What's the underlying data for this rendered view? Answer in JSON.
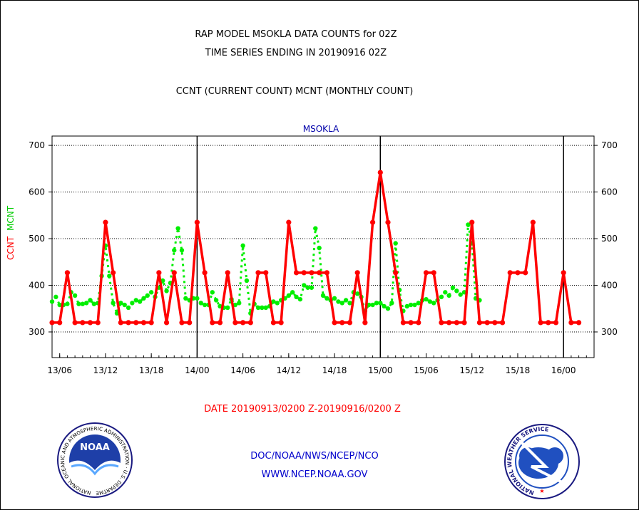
{
  "header": {
    "title_line1": "RAP MODEL MSOKLA DATA COUNTS for 02Z",
    "title_line2": "TIME SERIES ENDING IN 20190916 02Z",
    "subtitle": "CCNT (CURRENT COUNT) MCNT (MONTHLY COUNT)"
  },
  "footer": {
    "date_range": "DATE 20190913/0200 Z-20190916/0200 Z",
    "agency": "DOC/NOAA/NWS/NCEP/NCO",
    "website": "WWW.NCEP.NOAA.GOV",
    "noaa_logo_text": "NOAA",
    "noaa_ring_text": "NATIONAL OCEANIC AND ATMOSPHERIC ADMINISTRATION · U.S. DEPARTMENT OF COMMERCE",
    "nws_ring_text": "NATIONAL WEATHER SERVICE"
  },
  "colors": {
    "ccnt": "#ff0000",
    "mcnt": "#00ee00",
    "panel_title": "#0000aa",
    "footer_text": "#0000cc",
    "date_text": "#ff0000"
  },
  "chart_data": {
    "type": "line",
    "title": "MSOKLA",
    "ylim": [
      245,
      720
    ],
    "yticks": [
      300,
      400,
      500,
      600,
      700
    ],
    "xlim": [
      3,
      74
    ],
    "xticks": [
      {
        "x": 4,
        "label": "13/06"
      },
      {
        "x": 10,
        "label": "13/12"
      },
      {
        "x": 16,
        "label": "13/18"
      },
      {
        "x": 22,
        "label": "14/00"
      },
      {
        "x": 28,
        "label": "14/06"
      },
      {
        "x": 34,
        "label": "14/12"
      },
      {
        "x": 40,
        "label": "14/18"
      },
      {
        "x": 46,
        "label": "15/00"
      },
      {
        "x": 52,
        "label": "15/06"
      },
      {
        "x": 58,
        "label": "15/12"
      },
      {
        "x": 64,
        "label": "15/18"
      },
      {
        "x": 70,
        "label": "16/00"
      }
    ],
    "day_boundaries": [
      22,
      46,
      70
    ],
    "x_units": "hours from 20190913/0000 Z",
    "series": [
      {
        "name": "CCNT",
        "values": [
          {
            "x": 3,
            "y": 320
          },
          {
            "x": 4,
            "y": 320
          },
          {
            "x": 5,
            "y": 427
          },
          {
            "x": 6,
            "y": 320
          },
          {
            "x": 7,
            "y": 320
          },
          {
            "x": 8,
            "y": 320
          },
          {
            "x": 9,
            "y": 320
          },
          {
            "x": 10,
            "y": 535
          },
          {
            "x": 11,
            "y": 427
          },
          {
            "x": 12,
            "y": 320
          },
          {
            "x": 13,
            "y": 320
          },
          {
            "x": 14,
            "y": 320
          },
          {
            "x": 15,
            "y": 320
          },
          {
            "x": 16,
            "y": 320
          },
          {
            "x": 17,
            "y": 427
          },
          {
            "x": 18,
            "y": 320
          },
          {
            "x": 19,
            "y": 427
          },
          {
            "x": 20,
            "y": 320
          },
          {
            "x": 21,
            "y": 320
          },
          {
            "x": 22,
            "y": 535
          },
          {
            "x": 23,
            "y": 427
          },
          {
            "x": 24,
            "y": 320
          },
          {
            "x": 25,
            "y": 320
          },
          {
            "x": 26,
            "y": 427
          },
          {
            "x": 27,
            "y": 320
          },
          {
            "x": 28,
            "y": 320
          },
          {
            "x": 29,
            "y": 320
          },
          {
            "x": 30,
            "y": 427
          },
          {
            "x": 31,
            "y": 427
          },
          {
            "x": 32,
            "y": 320
          },
          {
            "x": 33,
            "y": 320
          },
          {
            "x": 34,
            "y": 535
          },
          {
            "x": 35,
            "y": 427
          },
          {
            "x": 36,
            "y": 427
          },
          {
            "x": 37,
            "y": 427
          },
          {
            "x": 38,
            "y": 427
          },
          {
            "x": 39,
            "y": 427
          },
          {
            "x": 40,
            "y": 320
          },
          {
            "x": 41,
            "y": 320
          },
          {
            "x": 42,
            "y": 320
          },
          {
            "x": 43,
            "y": 427
          },
          {
            "x": 44,
            "y": 320
          },
          {
            "x": 45,
            "y": 535
          },
          {
            "x": 46,
            "y": 642
          },
          {
            "x": 47,
            "y": 535
          },
          {
            "x": 48,
            "y": 427
          },
          {
            "x": 49,
            "y": 320
          },
          {
            "x": 50,
            "y": 320
          },
          {
            "x": 51,
            "y": 320
          },
          {
            "x": 52,
            "y": 427
          },
          {
            "x": 53,
            "y": 427
          },
          {
            "x": 54,
            "y": 320
          },
          {
            "x": 55,
            "y": 320
          },
          {
            "x": 56,
            "y": 320
          },
          {
            "x": 57,
            "y": 320
          },
          {
            "x": 58,
            "y": 535
          },
          {
            "x": 59,
            "y": 320
          },
          {
            "x": 60,
            "y": 320
          },
          {
            "x": 61,
            "y": 320
          },
          {
            "x": 62,
            "y": 320
          },
          {
            "x": 63,
            "y": 427
          },
          {
            "x": 64,
            "y": 427
          },
          {
            "x": 65,
            "y": 427
          },
          {
            "x": 66,
            "y": 535
          },
          {
            "x": 67,
            "y": 320
          },
          {
            "x": 68,
            "y": 320
          },
          {
            "x": 69,
            "y": 320
          },
          {
            "x": 70,
            "y": 427
          },
          {
            "x": 71,
            "y": 320
          },
          {
            "x": 72,
            "y": 320
          }
        ]
      },
      {
        "name": "MCNT",
        "values": [
          {
            "x": 3,
            "y": 365
          },
          {
            "x": 3.5,
            "y": 375
          },
          {
            "x": 4,
            "y": 358
          },
          {
            "x": 4.5,
            "y": 358
          },
          {
            "x": 5,
            "y": 360
          },
          {
            "x": 5.5,
            "y": 385
          },
          {
            "x": 6,
            "y": 378
          },
          {
            "x": 6.5,
            "y": 360
          },
          {
            "x": 7,
            "y": 360
          },
          {
            "x": 7.5,
            "y": 362
          },
          {
            "x": 8,
            "y": 368
          },
          {
            "x": 8.5,
            "y": 360
          },
          {
            "x": 9,
            "y": 362
          },
          {
            "x": 9.5,
            "y": 420
          },
          {
            "x": 10,
            "y": 485
          },
          {
            "x": 10.5,
            "y": 420
          },
          {
            "x": 11,
            "y": 362
          },
          {
            "x": 11.5,
            "y": 340
          },
          {
            "x": 12,
            "y": 362
          },
          {
            "x": 12.5,
            "y": 358
          },
          {
            "x": 13,
            "y": 352
          },
          {
            "x": 13.5,
            "y": 362
          },
          {
            "x": 14,
            "y": 368
          },
          {
            "x": 14.5,
            "y": 365
          },
          {
            "x": 15,
            "y": 372
          },
          {
            "x": 15.5,
            "y": 378
          },
          {
            "x": 16,
            "y": 385
          },
          {
            "x": 16.5,
            "y": 375
          },
          {
            "x": 17,
            "y": 395
          },
          {
            "x": 17.5,
            "y": 410
          },
          {
            "x": 18,
            "y": 388
          },
          {
            "x": 18.5,
            "y": 405
          },
          {
            "x": 19,
            "y": 475
          },
          {
            "x": 19.5,
            "y": 522
          },
          {
            "x": 20,
            "y": 475
          },
          {
            "x": 20.5,
            "y": 372
          },
          {
            "x": 21,
            "y": 368
          },
          {
            "x": 21.5,
            "y": 372
          },
          {
            "x": 22,
            "y": 372
          },
          {
            "x": 22.5,
            "y": 362
          },
          {
            "x": 23,
            "y": 358
          },
          {
            "x": 23.5,
            "y": 358
          },
          {
            "x": 24,
            "y": 385
          },
          {
            "x": 24.5,
            "y": 368
          },
          {
            "x": 25,
            "y": 355
          },
          {
            "x": 25.5,
            "y": 352
          },
          {
            "x": 26,
            "y": 352
          },
          {
            "x": 26.5,
            "y": 370
          },
          {
            "x": 27,
            "y": 358
          },
          {
            "x": 27.5,
            "y": 362
          },
          {
            "x": 28,
            "y": 485
          },
          {
            "x": 28.5,
            "y": 410
          },
          {
            "x": 29,
            "y": 340
          },
          {
            "x": 29.5,
            "y": 360
          },
          {
            "x": 30,
            "y": 352
          },
          {
            "x": 30.5,
            "y": 352
          },
          {
            "x": 31,
            "y": 352
          },
          {
            "x": 31.5,
            "y": 355
          },
          {
            "x": 32,
            "y": 365
          },
          {
            "x": 32.5,
            "y": 362
          },
          {
            "x": 33,
            "y": 368
          },
          {
            "x": 33.5,
            "y": 372
          },
          {
            "x": 34,
            "y": 378
          },
          {
            "x": 34.5,
            "y": 385
          },
          {
            "x": 35,
            "y": 375
          },
          {
            "x": 35.5,
            "y": 370
          },
          {
            "x": 36,
            "y": 400
          },
          {
            "x": 36.5,
            "y": 395
          },
          {
            "x": 37,
            "y": 395
          },
          {
            "x": 37.5,
            "y": 522
          },
          {
            "x": 38,
            "y": 480
          },
          {
            "x": 38.5,
            "y": 378
          },
          {
            "x": 39,
            "y": 372
          },
          {
            "x": 39.5,
            "y": 368
          },
          {
            "x": 40,
            "y": 372
          },
          {
            "x": 40.5,
            "y": 365
          },
          {
            "x": 41,
            "y": 362
          },
          {
            "x": 41.5,
            "y": 368
          },
          {
            "x": 42,
            "y": 362
          },
          {
            "x": 42.5,
            "y": 385
          },
          {
            "x": 43,
            "y": 382
          },
          {
            "x": 43.5,
            "y": 375
          },
          {
            "x": 44,
            "y": 345
          },
          {
            "x": 44.5,
            "y": 358
          },
          {
            "x": 45,
            "y": 358
          },
          {
            "x": 45.5,
            "y": 362
          },
          {
            "x": 46,
            "y": 362
          },
          {
            "x": 46.5,
            "y": 355
          },
          {
            "x": 47,
            "y": 350
          },
          {
            "x": 47.5,
            "y": 362
          },
          {
            "x": 48,
            "y": 490
          },
          {
            "x": 48.5,
            "y": 390
          },
          {
            "x": 49,
            "y": 345
          },
          {
            "x": 49.5,
            "y": 355
          },
          {
            "x": 50,
            "y": 358
          },
          {
            "x": 50.5,
            "y": 358
          },
          {
            "x": 51,
            "y": 362
          },
          {
            "x": 51.5,
            "y": 368
          },
          {
            "x": 52,
            "y": 370
          },
          {
            "x": 52.5,
            "y": 365
          },
          {
            "x": 53,
            "y": 362
          },
          {
            "x": 53.5,
            "y": 368
          },
          {
            "x": 54,
            "y": 375
          },
          {
            "x": 54.5,
            "y": 385
          },
          {
            "x": 55,
            "y": 378
          },
          {
            "x": 55.5,
            "y": 395
          },
          {
            "x": 56,
            "y": 388
          },
          {
            "x": 56.5,
            "y": 380
          },
          {
            "x": 57,
            "y": 385
          },
          {
            "x": 57.5,
            "y": 530
          },
          {
            "x": 58,
            "y": 490
          },
          {
            "x": 58.5,
            "y": 372
          },
          {
            "x": 59,
            "y": 368
          }
        ]
      }
    ]
  }
}
